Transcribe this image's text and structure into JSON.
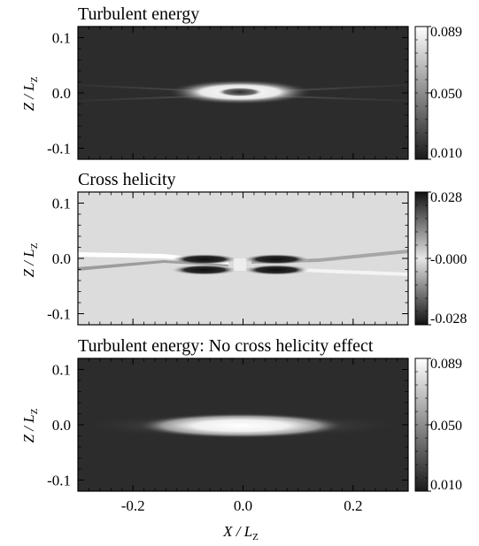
{
  "chart_data": [
    {
      "type": "heatmap",
      "title": "Turbulent energy",
      "ylabel_main": "Z / L",
      "ylabel_sub": "Z",
      "x_ticks": [
        "-0.2",
        "0.0",
        "0.2"
      ],
      "y_ticks": [
        "0.1",
        "0.0",
        "-0.1"
      ],
      "y_tick_values": [
        0.1,
        0.0,
        -0.1
      ],
      "xlim": [
        -0.3,
        0.3
      ],
      "ylim": [
        -0.12,
        0.12
      ],
      "colorbar": {
        "ticks": [
          "0.089",
          "0.050",
          "0.010"
        ],
        "range": [
          0.01,
          0.089
        ]
      },
      "colormap": [
        "#1a1a1a",
        "#ffffff"
      ],
      "feature": "narrow bright elongated current-sheet structure centered at x=0, z=0 with a darker central core; faint thin bands extending outward along z≈0"
    },
    {
      "type": "heatmap",
      "title": "Cross helicity",
      "ylabel_main": "Z / L",
      "ylabel_sub": "Z",
      "x_ticks": [
        "-0.2",
        "0.0",
        "0.2"
      ],
      "y_ticks": [
        "0.1",
        "0.0",
        "-0.1"
      ],
      "y_tick_values": [
        0.1,
        0.0,
        -0.1
      ],
      "xlim": [
        -0.3,
        0.3
      ],
      "ylim": [
        -0.12,
        0.12
      ],
      "colorbar": {
        "ticks": [
          "0.028",
          "-0.000",
          "-0.028"
        ],
        "range": [
          -0.028,
          0.028
        ]
      },
      "colormap": [
        "#1a1a1a",
        "#dcdcdc",
        "#ffffff"
      ],
      "feature": "antisymmetric pattern about x=0: dark lobes just above/below z=0 near the center, a bright band rising to the left and a grey band rising to the right"
    },
    {
      "type": "heatmap",
      "title": "Turbulent energy: No cross helicity effect",
      "ylabel_main": "Z / L",
      "ylabel_sub": "Z",
      "xlabel_main": "X / L",
      "xlabel_sub": "Z",
      "x_ticks": [
        "-0.2",
        "0.0",
        "0.2"
      ],
      "y_ticks": [
        "0.1",
        "0.0",
        "-0.1"
      ],
      "y_tick_values": [
        0.1,
        0.0,
        -0.1
      ],
      "xlim": [
        -0.3,
        0.3
      ],
      "ylim": [
        -0.12,
        0.12
      ],
      "colorbar": {
        "ticks": [
          "0.089",
          "0.050",
          "0.010"
        ],
        "range": [
          0.01,
          0.089
        ]
      },
      "colormap": [
        "#1a1a1a",
        "#ffffff"
      ],
      "feature": "broad smooth bright ellipse spanning roughly x=-0.15..0.15 centered at z=0 with fainter extensions outward"
    }
  ]
}
